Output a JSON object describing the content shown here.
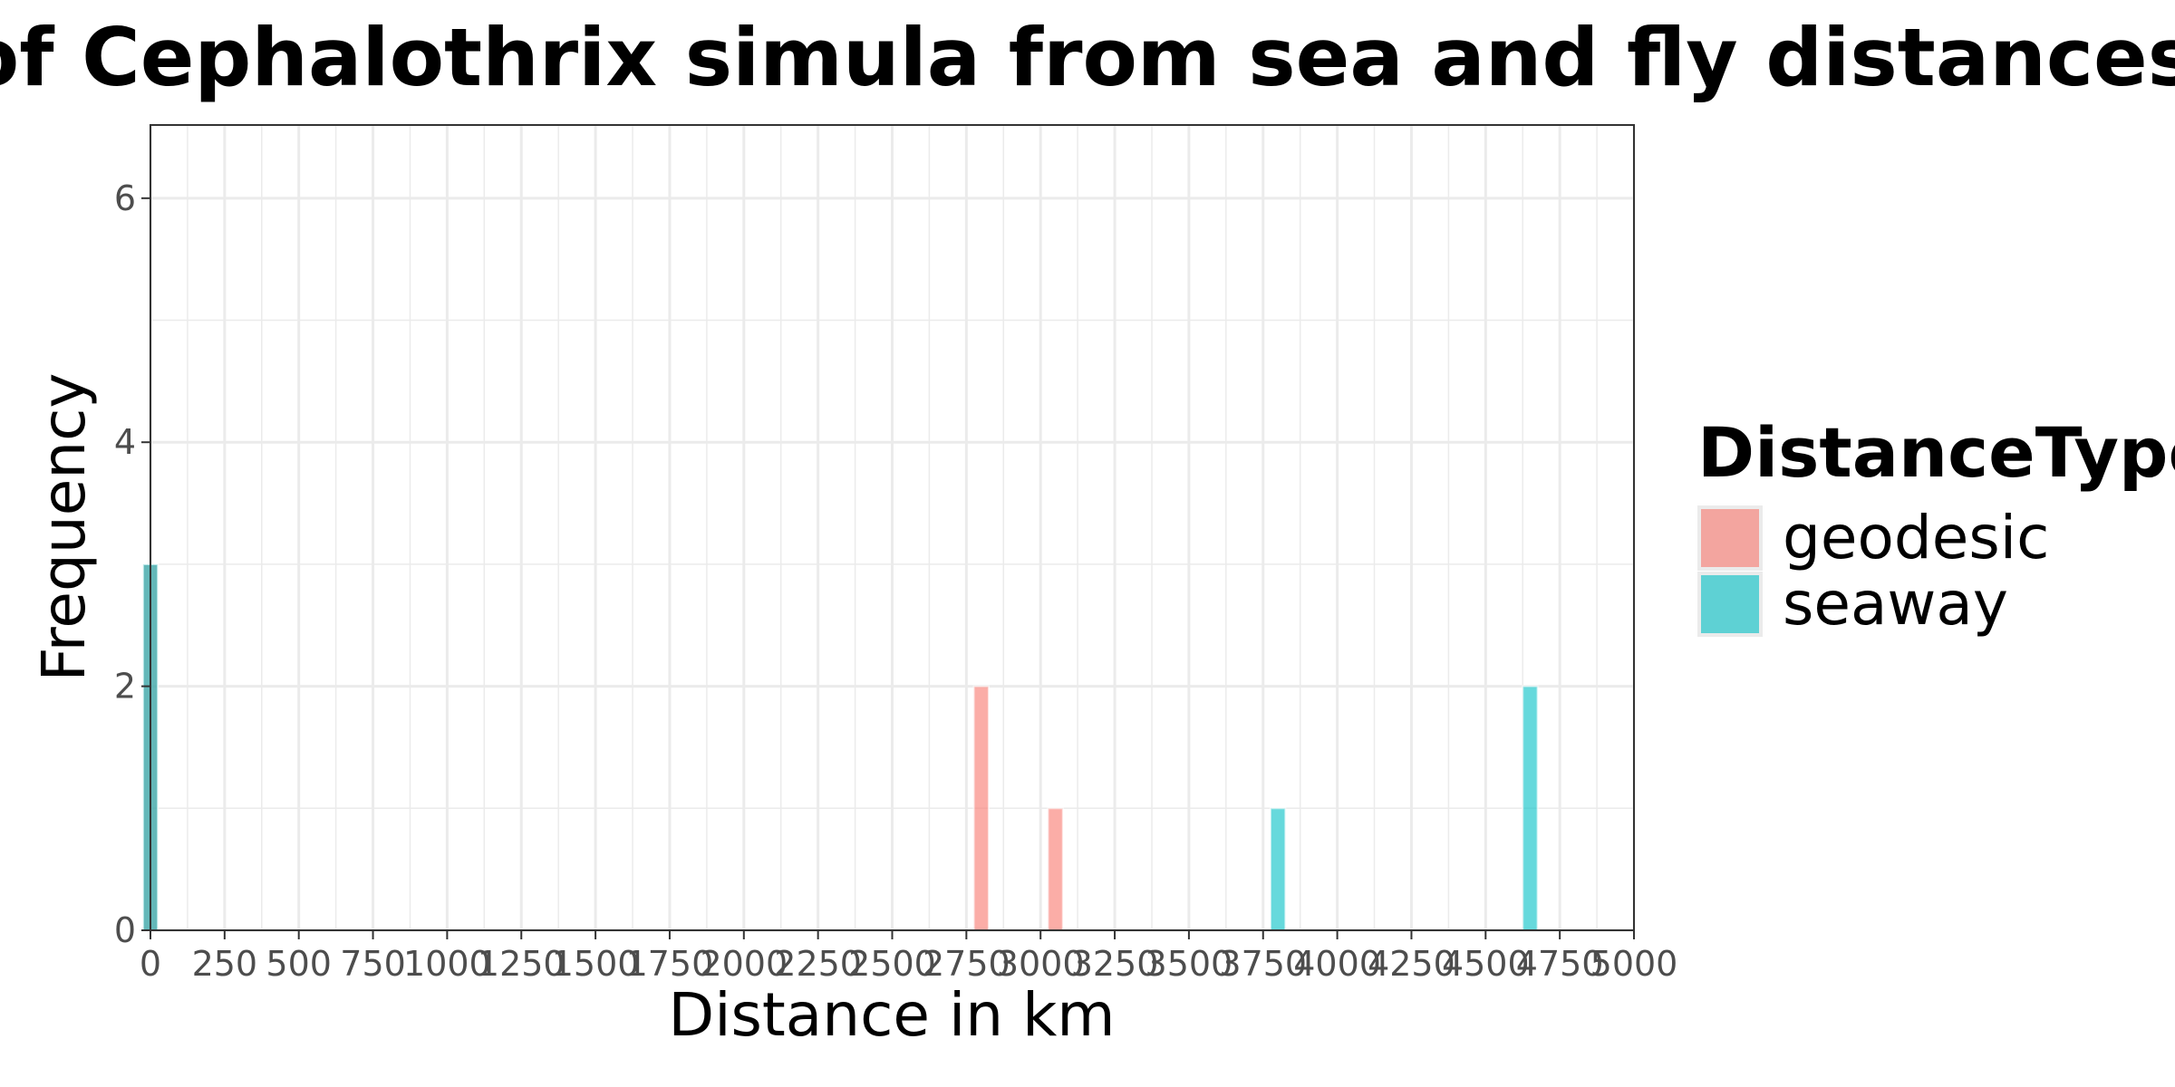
{
  "chart_data": {
    "type": "bar",
    "title": "Distribution of Cephalothrix simula from sea and fly distances",
    "xlabel": "Distance in km",
    "ylabel": "Frequency",
    "xlim": [
      0,
      5000
    ],
    "ylim": [
      0,
      6.6
    ],
    "x_ticks": [
      0,
      250,
      500,
      750,
      1000,
      1250,
      1500,
      1750,
      2000,
      2250,
      2500,
      2750,
      3000,
      3250,
      3500,
      3750,
      4000,
      4250,
      4500,
      4750,
      5000
    ],
    "y_ticks": [
      0,
      2,
      4,
      6
    ],
    "bin_width": 50,
    "grid": true,
    "legend": {
      "title": "DistanceType",
      "position": "right"
    },
    "series": [
      {
        "name": "geodesic",
        "color": "#F8766D",
        "bars": [
          {
            "x": 0,
            "count": 3
          },
          {
            "x": 2800,
            "count": 2
          },
          {
            "x": 3050,
            "count": 1
          }
        ]
      },
      {
        "name": "seaway",
        "color": "#00BFC4",
        "bars": [
          {
            "x": 0,
            "count": 3
          },
          {
            "x": 3800,
            "count": 1
          },
          {
            "x": 4650,
            "count": 2
          }
        ]
      }
    ]
  }
}
